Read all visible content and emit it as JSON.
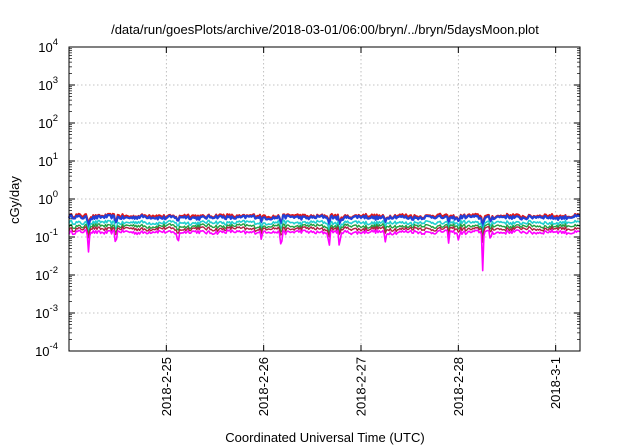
{
  "chart_data": {
    "type": "line",
    "title": "/data/run/goesPlots/archive/2018-03-01/06:00/bryn/../bryn/5daysMoon.plot",
    "xlabel": "Coordinated Universal Time (UTC)",
    "ylabel": "cGy/day",
    "yscale": "log",
    "ylim": [
      0.0001,
      10000
    ],
    "y_ticks": [
      {
        "base": "10",
        "exp": "4",
        "value": 10000
      },
      {
        "base": "10",
        "exp": "3",
        "value": 1000
      },
      {
        "base": "10",
        "exp": "2",
        "value": 100
      },
      {
        "base": "10",
        "exp": "1",
        "value": 10
      },
      {
        "base": "10",
        "exp": "0",
        "value": 1
      },
      {
        "base": "10",
        "exp": "-1",
        "value": 0.1
      },
      {
        "base": "10",
        "exp": "-2",
        "value": 0.01
      },
      {
        "base": "10",
        "exp": "-3",
        "value": 0.001
      },
      {
        "base": "10",
        "exp": "-4",
        "value": 0.0001
      }
    ],
    "xlim_days": [
      0,
      5.25
    ],
    "x_ticks": [
      {
        "label": "2018-2-25",
        "day": 1.0
      },
      {
        "label": "2018-2-26",
        "day": 2.0
      },
      {
        "label": "2018-2-27",
        "day": 3.0
      },
      {
        "label": "2018-2-28",
        "day": 4.0
      },
      {
        "label": "2018-3-1",
        "day": 5.0
      }
    ],
    "grid": true,
    "dips": [
      {
        "day": 0.2,
        "depth": 0.7
      },
      {
        "day": 0.48,
        "depth": 0.55
      },
      {
        "day": 1.12,
        "depth": 0.55
      },
      {
        "day": 1.98,
        "depth": 0.4
      },
      {
        "day": 2.18,
        "depth": 0.6
      },
      {
        "day": 2.67,
        "depth": 0.65
      },
      {
        "day": 2.78,
        "depth": 0.75
      },
      {
        "day": 3.25,
        "depth": 0.45
      },
      {
        "day": 3.9,
        "depth": 0.45
      },
      {
        "day": 4.0,
        "depth": 0.4
      },
      {
        "day": 4.25,
        "depth": 0.9
      },
      {
        "day": 4.33,
        "depth": 0.35
      }
    ],
    "series": [
      {
        "base": 0.36,
        "color": "#e01818",
        "width": 2.0
      },
      {
        "base": 0.33,
        "color": "#2040d8",
        "width": 2.2
      },
      {
        "base": 0.24,
        "color": "#20d0d0",
        "width": 1.6
      },
      {
        "base": 0.195,
        "color": "#20a040",
        "width": 1.4
      },
      {
        "base": 0.165,
        "color": "#b02040",
        "width": 1.4
      },
      {
        "base": 0.135,
        "color": "#ff00ff",
        "width": 1.6
      }
    ]
  }
}
